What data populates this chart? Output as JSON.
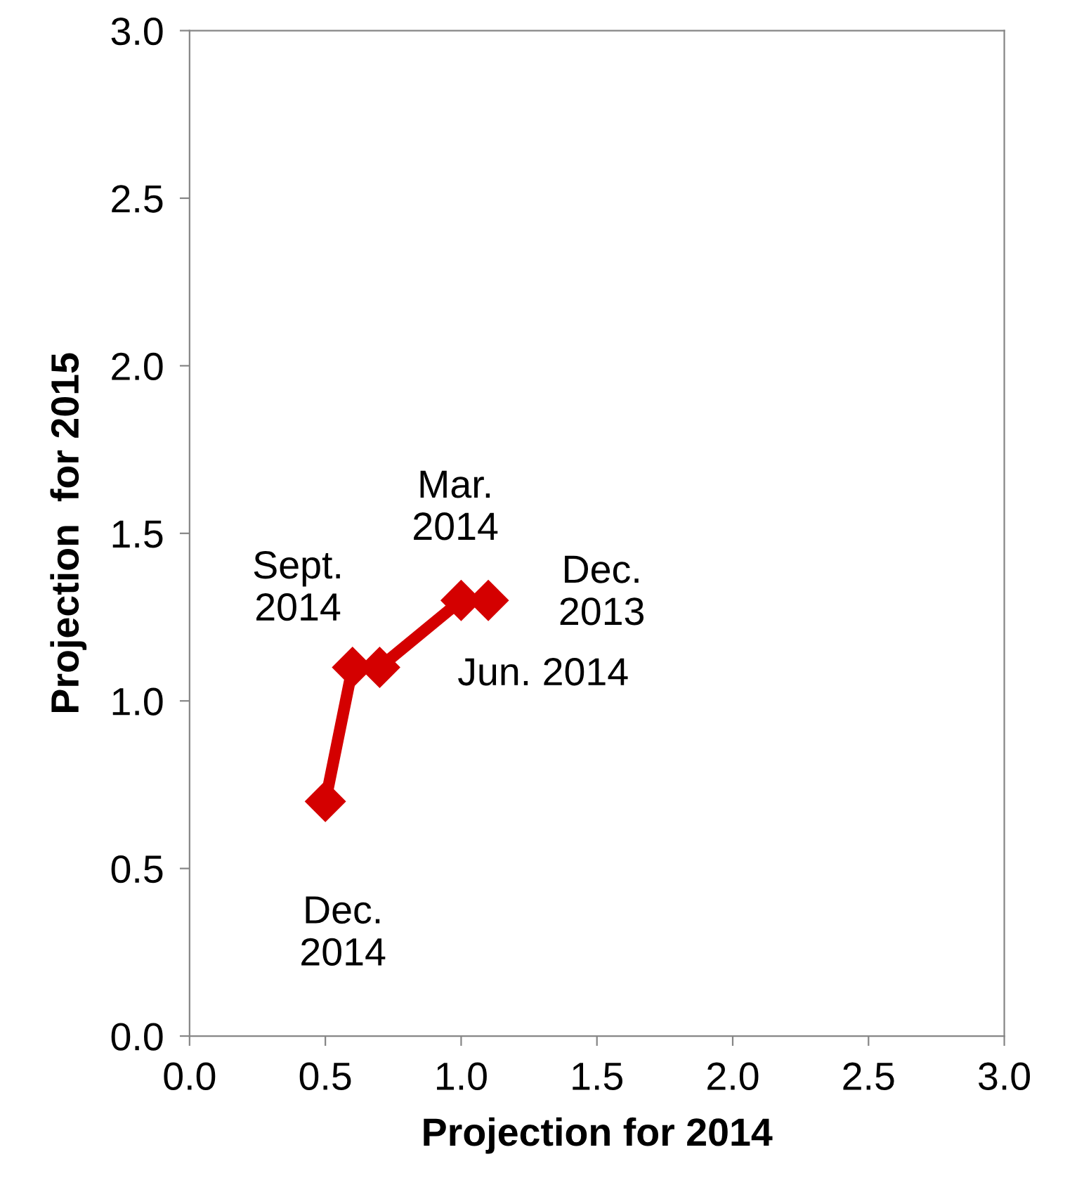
{
  "chart_data": {
    "type": "line",
    "xlabel": "Projection for 2014",
    "ylabel": "Projection  for 2015",
    "series": [
      {
        "color": "#d40000",
        "x": [
          1.1,
          1.0,
          0.7,
          0.6,
          0.5
        ],
        "values": [
          1.3,
          1.3,
          1.1,
          1.1,
          0.7
        ]
      }
    ],
    "marker": "diamond",
    "line_style": "solid",
    "xlim": [
      0.0,
      3.0
    ],
    "ylim": [
      0.0,
      3.0
    ],
    "xticks": [
      {
        "value": 0,
        "label": "0.0"
      },
      {
        "value": 0.5,
        "label": "0.5"
      },
      {
        "value": 1,
        "label": "1.0"
      },
      {
        "value": 1.5,
        "label": "1.5"
      },
      {
        "value": 2,
        "label": "2.0"
      },
      {
        "value": 2.5,
        "label": "2.5"
      },
      {
        "value": 3,
        "label": "3.0"
      }
    ],
    "yticks": [
      {
        "value": 0,
        "label": "0.0"
      },
      {
        "value": 0.5,
        "label": "0.5"
      },
      {
        "value": 1,
        "label": "1.0"
      },
      {
        "value": 1.5,
        "label": "1.5"
      },
      {
        "value": 2,
        "label": "2.0"
      },
      {
        "value": 2.5,
        "label": "2.5"
      },
      {
        "value": 3,
        "label": "3.0"
      }
    ],
    "grid": false,
    "legend": false,
    "annotations": [
      "Dec.\n2013",
      {
        "text": "Mar.\n2014",
        "x": 1.0,
        "y": 1.3
      },
      "Jun. 2014",
      {
        "text": "Sept.\n2014",
        "x": 0.6,
        "y": 1.1
      },
      {
        "text": "Dec.\n2014",
        "x": 0.5,
        "y": 0.7
      }
    ]
  }
}
